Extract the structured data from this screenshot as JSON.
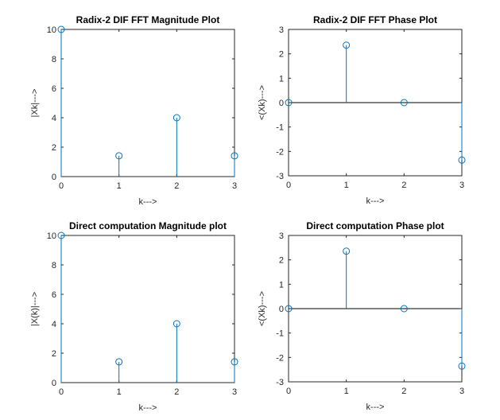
{
  "colors": {
    "stem": "#0072bd",
    "axis": "#262626",
    "baseline": "#000000",
    "background": "#ffffff"
  },
  "chart_data": [
    {
      "type": "stem",
      "title": "Radix-2 DIF FFT Magnitude Plot",
      "xlabel": "k--->",
      "ylabel": "|Xk|--->",
      "x": [
        0,
        1,
        2,
        3
      ],
      "y": [
        10,
        1.414,
        4,
        1.414
      ],
      "xlim": [
        0,
        3
      ],
      "ylim": [
        0,
        10
      ],
      "xticks": [
        "0",
        "1",
        "2",
        "3"
      ],
      "yticks": [
        "0",
        "2",
        "4",
        "6",
        "8",
        "10"
      ],
      "grid": false
    },
    {
      "type": "stem",
      "title": "Radix-2 DIF FFT Phase Plot",
      "xlabel": "k--->",
      "ylabel": "<(Xk)--->",
      "x": [
        0,
        1,
        2,
        3
      ],
      "y": [
        0,
        2.356,
        0,
        -2.356
      ],
      "xlim": [
        0,
        3
      ],
      "ylim": [
        -3,
        3
      ],
      "xticks": [
        "0",
        "1",
        "2",
        "3"
      ],
      "yticks": [
        "-3",
        "-2",
        "-1",
        "0",
        "1",
        "2",
        "3"
      ],
      "grid": false
    },
    {
      "type": "stem",
      "title": "Direct computation Magnitude plot",
      "xlabel": "k--->",
      "ylabel": "|X(k)|--->",
      "x": [
        0,
        1,
        2,
        3
      ],
      "y": [
        10,
        1.414,
        4,
        1.414
      ],
      "xlim": [
        0,
        3
      ],
      "ylim": [
        0,
        10
      ],
      "xticks": [
        "0",
        "1",
        "2",
        "3"
      ],
      "yticks": [
        "0",
        "2",
        "4",
        "6",
        "8",
        "10"
      ],
      "grid": false
    },
    {
      "type": "stem",
      "title": "Direct computation Phase plot",
      "xlabel": "k--->",
      "ylabel": "<(Xk)--->",
      "x": [
        0,
        1,
        2,
        3
      ],
      "y": [
        0,
        2.356,
        0,
        -2.356
      ],
      "xlim": [
        0,
        3
      ],
      "ylim": [
        -3,
        3
      ],
      "xticks": [
        "0",
        "1",
        "2",
        "3"
      ],
      "yticks": [
        "-3",
        "-2",
        "-1",
        "0",
        "1",
        "2",
        "3"
      ],
      "grid": false
    }
  ]
}
